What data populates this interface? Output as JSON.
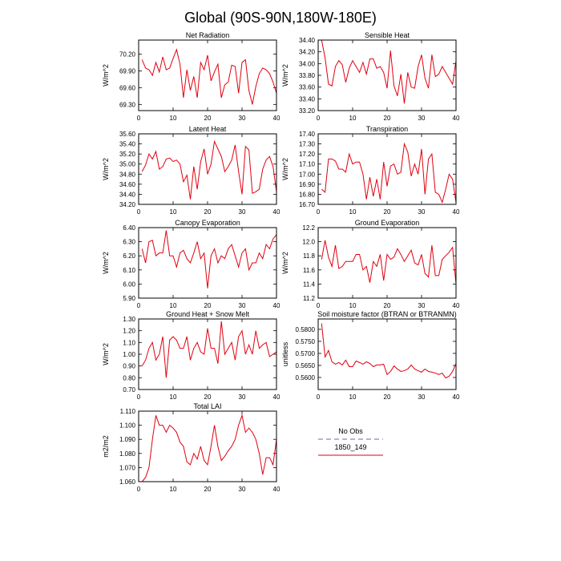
{
  "title": "Global (90S-90N,180W-180E)",
  "legend": [
    {
      "name": "No Obs",
      "color": "#9999dd",
      "dashed": true
    },
    {
      "name": "1850_149",
      "color": "#e0000f",
      "dashed": false
    }
  ],
  "chart_data": [
    {
      "type": "line",
      "title": "Net Radiation",
      "ylabel": "W/m^2",
      "color": "#e0000f",
      "x": [
        1,
        2,
        3,
        4,
        5,
        6,
        7,
        8,
        9,
        10,
        11,
        12,
        13,
        14,
        15,
        16,
        17,
        18,
        19,
        20,
        21,
        22,
        23,
        24,
        25,
        26,
        27,
        28,
        29,
        30,
        31,
        32,
        33,
        34,
        35,
        36,
        37,
        38,
        39,
        40
      ],
      "values": [
        70.1,
        69.95,
        69.92,
        69.82,
        70.05,
        69.88,
        70.15,
        69.92,
        69.95,
        70.12,
        70.28,
        70.02,
        69.42,
        69.92,
        69.55,
        69.8,
        69.42,
        70.05,
        69.92,
        70.18,
        69.72,
        69.88,
        70.02,
        69.42,
        69.65,
        69.7,
        70.0,
        69.98,
        69.5,
        70.05,
        70.1,
        69.55,
        69.3,
        69.62,
        69.85,
        69.95,
        69.92,
        69.85,
        69.7,
        69.5
      ],
      "xlim": [
        0,
        40
      ],
      "xticks": [
        0,
        10,
        20,
        30,
        40
      ],
      "ylim": [
        69.19,
        70.45
      ],
      "yticks": [
        {
          "value": 69.3,
          "label": "69.30"
        },
        {
          "value": 69.6,
          "label": "69.60"
        },
        {
          "value": 69.9,
          "label": "69.90"
        },
        {
          "value": 70.2,
          "label": "70.20"
        }
      ]
    },
    {
      "type": "line",
      "title": "Sensible Heat",
      "ylabel": "W/m^2",
      "color": "#e0000f",
      "x": [
        1,
        2,
        3,
        4,
        5,
        6,
        7,
        8,
        9,
        10,
        11,
        12,
        13,
        14,
        15,
        16,
        17,
        18,
        19,
        20,
        21,
        22,
        23,
        24,
        25,
        26,
        27,
        28,
        29,
        30,
        31,
        32,
        33,
        34,
        35,
        36,
        37,
        38,
        39,
        40
      ],
      "values": [
        34.4,
        34.1,
        33.65,
        33.62,
        33.95,
        34.05,
        33.98,
        33.68,
        33.92,
        34.05,
        33.95,
        33.85,
        34.02,
        33.82,
        34.08,
        34.08,
        33.92,
        33.95,
        33.85,
        33.58,
        34.22,
        33.62,
        33.45,
        33.82,
        33.32,
        33.85,
        33.6,
        33.58,
        33.95,
        34.15,
        33.75,
        33.58,
        34.15,
        33.78,
        33.82,
        33.95,
        33.85,
        33.75,
        33.65,
        34.05
      ],
      "xlim": [
        0,
        40
      ],
      "xticks": [
        0,
        10,
        20,
        30,
        40
      ],
      "ylim": [
        33.2,
        34.4
      ],
      "yticks": [
        {
          "value": 33.2,
          "label": "33.20"
        },
        {
          "value": 33.4,
          "label": "33.40"
        },
        {
          "value": 33.6,
          "label": "33.60"
        },
        {
          "value": 33.8,
          "label": "33.80"
        },
        {
          "value": 34.0,
          "label": "34.00"
        },
        {
          "value": 34.2,
          "label": "34.20"
        },
        {
          "value": 34.4,
          "label": "34.40"
        }
      ]
    },
    {
      "type": "line",
      "title": "Latent Heat",
      "ylabel": "W/m^2",
      "color": "#e0000f",
      "x": [
        1,
        2,
        3,
        4,
        5,
        6,
        7,
        8,
        9,
        10,
        11,
        12,
        13,
        14,
        15,
        16,
        17,
        18,
        19,
        20,
        21,
        22,
        23,
        24,
        25,
        26,
        27,
        28,
        29,
        30,
        31,
        32,
        33,
        34,
        35,
        36,
        37,
        38,
        39,
        40
      ],
      "values": [
        34.85,
        34.98,
        35.2,
        35.1,
        35.25,
        34.9,
        34.95,
        35.1,
        35.12,
        35.05,
        35.08,
        35.0,
        34.65,
        34.78,
        34.3,
        34.95,
        34.5,
        35.05,
        35.3,
        34.8,
        35.0,
        35.45,
        35.3,
        35.15,
        34.85,
        34.95,
        35.08,
        35.38,
        34.85,
        34.4,
        35.35,
        35.28,
        34.42,
        34.45,
        34.5,
        34.9,
        35.08,
        35.15,
        34.95,
        34.45
      ],
      "xlim": [
        0,
        40
      ],
      "xticks": [
        0,
        10,
        20,
        30,
        40
      ],
      "ylim": [
        34.2,
        35.6
      ],
      "yticks": [
        {
          "value": 34.2,
          "label": "34.20"
        },
        {
          "value": 34.4,
          "label": "34.40"
        },
        {
          "value": 34.6,
          "label": "34.60"
        },
        {
          "value": 34.8,
          "label": "34.80"
        },
        {
          "value": 35.0,
          "label": "35.00"
        },
        {
          "value": 35.2,
          "label": "35.20"
        },
        {
          "value": 35.4,
          "label": "35.40"
        },
        {
          "value": 35.6,
          "label": "35.60"
        }
      ]
    },
    {
      "type": "line",
      "title": "Transpiration",
      "ylabel": "W/m^2",
      "color": "#e0000f",
      "x": [
        1,
        2,
        3,
        4,
        5,
        6,
        7,
        8,
        9,
        10,
        11,
        12,
        13,
        14,
        15,
        16,
        17,
        18,
        19,
        20,
        21,
        22,
        23,
        24,
        25,
        26,
        27,
        28,
        29,
        30,
        31,
        32,
        33,
        34,
        35,
        36,
        37,
        38,
        39,
        40
      ],
      "values": [
        16.85,
        16.82,
        17.15,
        17.15,
        17.13,
        17.05,
        17.05,
        17.02,
        17.2,
        17.1,
        17.12,
        17.12,
        17.0,
        16.75,
        16.97,
        16.78,
        16.95,
        16.75,
        17.12,
        16.88,
        17.08,
        17.1,
        17.0,
        17.02,
        17.3,
        17.22,
        16.98,
        17.1,
        17.0,
        17.25,
        16.8,
        17.15,
        17.2,
        16.82,
        16.8,
        16.72,
        16.85,
        17.0,
        16.95,
        16.72
      ],
      "xlim": [
        0,
        40
      ],
      "xticks": [
        0,
        10,
        20,
        30,
        40
      ],
      "ylim": [
        16.7,
        17.4
      ],
      "yticks": [
        {
          "value": 16.7,
          "label": "16.70"
        },
        {
          "value": 16.8,
          "label": "16.80"
        },
        {
          "value": 16.9,
          "label": "16.90"
        },
        {
          "value": 17.0,
          "label": "17.00"
        },
        {
          "value": 17.1,
          "label": "17.10"
        },
        {
          "value": 17.2,
          "label": "17.20"
        },
        {
          "value": 17.3,
          "label": "17.30"
        },
        {
          "value": 17.4,
          "label": "17.40"
        }
      ]
    },
    {
      "type": "line",
      "title": "Canopy Evaporation",
      "ylabel": "W/m^2",
      "color": "#e0000f",
      "x": [
        1,
        2,
        3,
        4,
        5,
        6,
        7,
        8,
        9,
        10,
        11,
        12,
        13,
        14,
        15,
        16,
        17,
        18,
        19,
        20,
        21,
        22,
        23,
        24,
        25,
        26,
        27,
        28,
        29,
        30,
        31,
        32,
        33,
        34,
        35,
        36,
        37,
        38,
        39,
        40
      ],
      "values": [
        6.25,
        6.15,
        6.3,
        6.31,
        6.2,
        6.22,
        6.22,
        6.38,
        6.2,
        6.2,
        6.12,
        6.22,
        6.24,
        6.18,
        6.15,
        6.22,
        6.3,
        6.18,
        6.22,
        5.97,
        6.2,
        6.25,
        6.15,
        6.2,
        6.18,
        6.25,
        6.28,
        6.2,
        6.12,
        6.22,
        6.25,
        6.1,
        6.15,
        6.15,
        6.22,
        6.18,
        6.28,
        6.25,
        6.32,
        6.35
      ],
      "xlim": [
        0,
        40
      ],
      "xticks": [
        0,
        10,
        20,
        30,
        40
      ],
      "ylim": [
        5.9,
        6.4
      ],
      "yticks": [
        {
          "value": 5.9,
          "label": "5.90"
        },
        {
          "value": 6.0,
          "label": "6.00"
        },
        {
          "value": 6.1,
          "label": "6.10"
        },
        {
          "value": 6.2,
          "label": "6.20"
        },
        {
          "value": 6.3,
          "label": "6.30"
        },
        {
          "value": 6.4,
          "label": "6.40"
        }
      ]
    },
    {
      "type": "line",
      "title": "Ground Evaporation",
      "ylabel": "W/m^2",
      "color": "#e0000f",
      "x": [
        1,
        2,
        3,
        4,
        5,
        6,
        7,
        8,
        9,
        10,
        11,
        12,
        13,
        14,
        15,
        16,
        17,
        18,
        19,
        20,
        21,
        22,
        23,
        24,
        25,
        26,
        27,
        28,
        29,
        30,
        31,
        32,
        33,
        34,
        35,
        36,
        37,
        38,
        39,
        40
      ],
      "values": [
        11.75,
        12.02,
        11.78,
        11.65,
        11.95,
        11.62,
        11.65,
        11.72,
        11.72,
        11.72,
        11.82,
        11.82,
        11.6,
        11.65,
        11.42,
        11.72,
        11.65,
        11.82,
        11.45,
        11.82,
        11.75,
        11.78,
        11.9,
        11.82,
        11.72,
        11.8,
        11.88,
        11.7,
        11.67,
        11.82,
        11.55,
        11.5,
        11.95,
        11.52,
        11.52,
        11.75,
        11.8,
        11.85,
        11.92,
        11.4
      ],
      "xlim": [
        0,
        40
      ],
      "xticks": [
        0,
        10,
        20,
        30,
        40
      ],
      "ylim": [
        11.2,
        12.2
      ],
      "yticks": [
        11.2,
        11.4,
        11.6,
        11.8,
        {
          "value": 12.0,
          "label": "12.0"
        },
        12.2
      ]
    },
    {
      "type": "line",
      "title": "Ground Heat + Snow Melt",
      "ylabel": "W/m^2",
      "color": "#e0000f",
      "x": [
        1,
        2,
        3,
        4,
        5,
        6,
        7,
        8,
        9,
        10,
        11,
        12,
        13,
        14,
        15,
        16,
        17,
        18,
        19,
        20,
        21,
        22,
        23,
        24,
        25,
        26,
        27,
        28,
        29,
        30,
        31,
        32,
        33,
        34,
        35,
        36,
        37,
        38,
        39,
        40
      ],
      "values": [
        0.9,
        0.95,
        1.05,
        1.1,
        0.95,
        1.0,
        1.15,
        0.8,
        1.12,
        1.15,
        1.12,
        1.05,
        1.05,
        1.15,
        0.95,
        1.05,
        1.1,
        1.02,
        1.0,
        1.22,
        1.05,
        1.05,
        0.92,
        1.28,
        1.0,
        1.05,
        1.1,
        0.95,
        1.15,
        1.2,
        1.0,
        1.08,
        1.0,
        1.2,
        1.05,
        1.08,
        1.1,
        0.98,
        1.0,
        1.02
      ],
      "xlim": [
        0,
        40
      ],
      "xticks": [
        0,
        10,
        20,
        30,
        40
      ],
      "ylim": [
        0.7,
        1.3
      ],
      "yticks": [
        {
          "value": 0.7,
          "label": "0.70"
        },
        {
          "value": 0.8,
          "label": "0.80"
        },
        {
          "value": 0.9,
          "label": "0.90"
        },
        {
          "value": 1.0,
          "label": "1.00"
        },
        {
          "value": 1.1,
          "label": "1.10"
        },
        {
          "value": 1.2,
          "label": "1.20"
        },
        {
          "value": 1.3,
          "label": "1.30"
        }
      ]
    },
    {
      "type": "line",
      "title": "Soil moisture factor (BTRAN or BTRANMN)",
      "ylabel": "unitless",
      "color": "#e0000f",
      "x": [
        1,
        2,
        3,
        4,
        5,
        6,
        7,
        8,
        9,
        10,
        11,
        12,
        13,
        14,
        15,
        16,
        17,
        18,
        19,
        20,
        21,
        22,
        23,
        24,
        25,
        26,
        27,
        28,
        29,
        30,
        31,
        32,
        33,
        34,
        35,
        36,
        37,
        38,
        39,
        40
      ],
      "values": [
        0.5825,
        0.5685,
        0.5712,
        0.5665,
        0.5655,
        0.5662,
        0.5652,
        0.5672,
        0.5645,
        0.5645,
        0.5668,
        0.5662,
        0.5655,
        0.5665,
        0.5658,
        0.5645,
        0.5652,
        0.5652,
        0.5655,
        0.5612,
        0.5625,
        0.5648,
        0.5635,
        0.5625,
        0.5628,
        0.5635,
        0.5652,
        0.5635,
        0.5628,
        0.5622,
        0.5635,
        0.5625,
        0.5622,
        0.5618,
        0.5612,
        0.5618,
        0.5598,
        0.5605,
        0.5625,
        0.5658
      ],
      "xlim": [
        0,
        40
      ],
      "xticks": [
        0,
        10,
        20,
        30,
        40
      ],
      "ylim": [
        0.555,
        0.5843
      ],
      "yticks": [
        {
          "value": 0.56,
          "label": "0.5600"
        },
        {
          "value": 0.565,
          "label": "0.5650"
        },
        {
          "value": 0.57,
          "label": "0.5700"
        },
        {
          "value": 0.575,
          "label": "0.5750"
        },
        {
          "value": 0.58,
          "label": "0.5800"
        }
      ]
    },
    {
      "type": "line",
      "title": "Total LAI",
      "ylabel": "m2/m2",
      "color": "#e0000f",
      "x": [
        1,
        2,
        3,
        4,
        5,
        6,
        7,
        8,
        9,
        10,
        11,
        12,
        13,
        14,
        15,
        16,
        17,
        18,
        19,
        20,
        21,
        22,
        23,
        24,
        25,
        26,
        27,
        28,
        29,
        30,
        31,
        32,
        33,
        34,
        35,
        36,
        37,
        38,
        39,
        40
      ],
      "values": [
        1.06,
        1.063,
        1.07,
        1.09,
        1.107,
        1.1,
        1.1,
        1.095,
        1.1,
        1.098,
        1.095,
        1.088,
        1.085,
        1.074,
        1.072,
        1.08,
        1.076,
        1.085,
        1.075,
        1.072,
        1.085,
        1.1,
        1.085,
        1.075,
        1.078,
        1.082,
        1.085,
        1.09,
        1.1,
        1.107,
        1.095,
        1.098,
        1.095,
        1.09,
        1.08,
        1.065,
        1.077,
        1.077,
        1.072,
        1.09
      ],
      "xlim": [
        0,
        40
      ],
      "xticks": [
        0,
        10,
        20,
        30,
        40
      ],
      "ylim": [
        1.06,
        1.11
      ],
      "yticks": [
        {
          "value": 1.06,
          "label": "1.060"
        },
        {
          "value": 1.07,
          "label": "1.070"
        },
        {
          "value": 1.08,
          "label": "1.080"
        },
        {
          "value": 1.09,
          "label": "1.090"
        },
        {
          "value": 1.1,
          "label": "1.100"
        },
        {
          "value": 1.11,
          "label": "1.110"
        }
      ]
    }
  ]
}
